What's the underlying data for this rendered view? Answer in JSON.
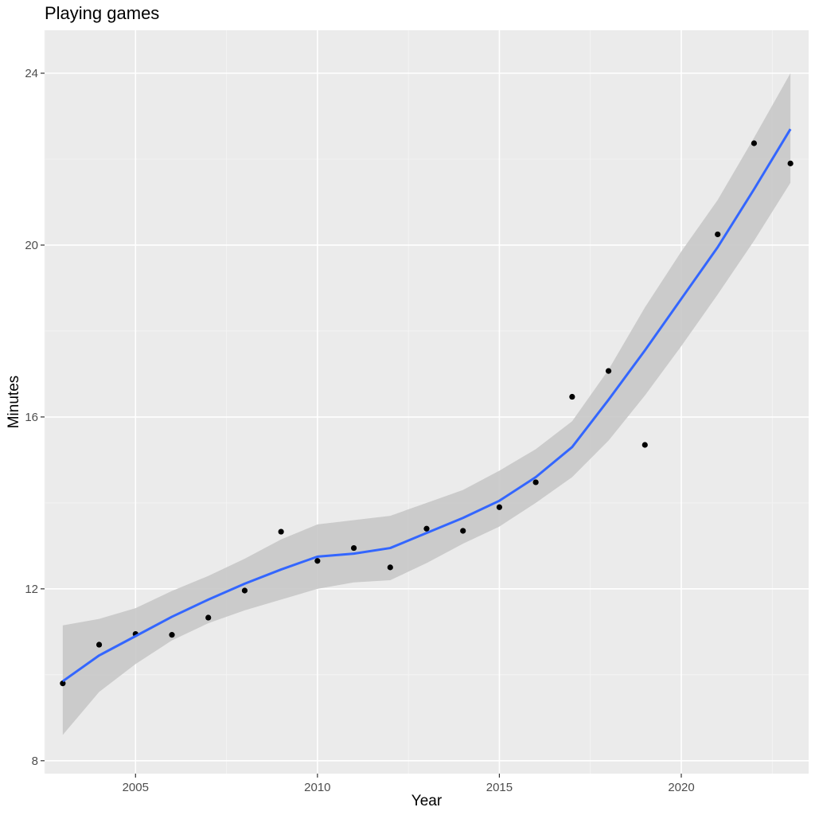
{
  "chart_data": {
    "type": "scatter",
    "title": "Playing games",
    "xlabel": "Year",
    "ylabel": "Minutes",
    "xlim": [
      2002.5,
      2023.5
    ],
    "ylim": [
      7.7,
      25
    ],
    "x_ticks": [
      2005,
      2010,
      2015,
      2020
    ],
    "y_ticks": [
      8,
      12,
      16,
      20,
      24
    ],
    "x_tick_labels": [
      "2005",
      "2010",
      "2015",
      "2020"
    ],
    "y_tick_labels": [
      "8",
      "12",
      "16",
      "20",
      "24"
    ],
    "grid": true,
    "points": {
      "x": [
        2003,
        2004,
        2005,
        2006,
        2007,
        2008,
        2009,
        2010,
        2011,
        2012,
        2013,
        2014,
        2015,
        2016,
        2017,
        2018,
        2019,
        2021,
        2022,
        2023
      ],
      "y": [
        9.8,
        10.7,
        10.95,
        10.93,
        11.33,
        11.96,
        13.33,
        12.65,
        12.95,
        12.5,
        13.4,
        13.35,
        13.9,
        14.48,
        16.47,
        17.07,
        15.35,
        20.25,
        22.37,
        21.9
      ]
    },
    "smooth": {
      "x": [
        2003,
        2004,
        2005,
        2006,
        2007,
        2008,
        2009,
        2010,
        2011,
        2012,
        2013,
        2014,
        2015,
        2016,
        2017,
        2018,
        2019,
        2020,
        2021,
        2022,
        2023
      ],
      "y": [
        9.85,
        10.45,
        10.9,
        11.35,
        11.75,
        12.12,
        12.45,
        12.75,
        12.82,
        12.95,
        13.3,
        13.65,
        14.05,
        14.6,
        15.3,
        16.4,
        17.55,
        18.75,
        19.95,
        21.3,
        22.7
      ],
      "lower": [
        8.6,
        9.6,
        10.25,
        10.8,
        11.2,
        11.5,
        11.75,
        12.0,
        12.15,
        12.2,
        12.6,
        13.05,
        13.45,
        14.0,
        14.6,
        15.45,
        16.5,
        17.65,
        18.85,
        20.1,
        21.45
      ],
      "upper": [
        11.15,
        11.3,
        11.55,
        11.95,
        12.3,
        12.7,
        13.15,
        13.5,
        13.6,
        13.7,
        14.0,
        14.3,
        14.75,
        15.25,
        15.9,
        17.1,
        18.55,
        19.85,
        21.05,
        22.5,
        24.0
      ]
    },
    "colors": {
      "panel": "#EBEBEB",
      "grid_major": "#FFFFFF",
      "grid_minor": "#F5F5F5",
      "point": "#000000",
      "line": "#3366FF",
      "ribbon": "#C8C8C8",
      "tick_label": "#4D4D4D",
      "axis_title": "#000000"
    }
  }
}
